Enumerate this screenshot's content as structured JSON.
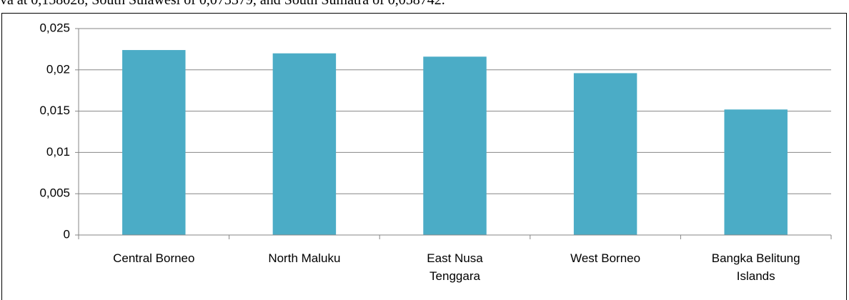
{
  "caption": "va at 0,158028, South Sulawesi of 0,073379, and South Sumatra of 0,058742.",
  "chart_data": {
    "type": "bar",
    "categories": [
      "Central Borneo",
      "North Maluku",
      "East Nusa Tenggara",
      "West Borneo",
      "Bangka Belitung Islands"
    ],
    "values": [
      0.0224,
      0.022,
      0.0216,
      0.0196,
      0.0152
    ],
    "color": "#4bacc6",
    "ylim": [
      0,
      0.025
    ],
    "yticks": [
      0,
      {
        "value": 0.005,
        "label": "0,005"
      },
      {
        "value": 0.01,
        "label": "0,01"
      },
      {
        "value": 0.015,
        "label": "0,015"
      },
      {
        "value": 0.02,
        "label": "0,02"
      },
      {
        "value": 0.025,
        "label": "0,025"
      }
    ],
    "grid": true
  }
}
